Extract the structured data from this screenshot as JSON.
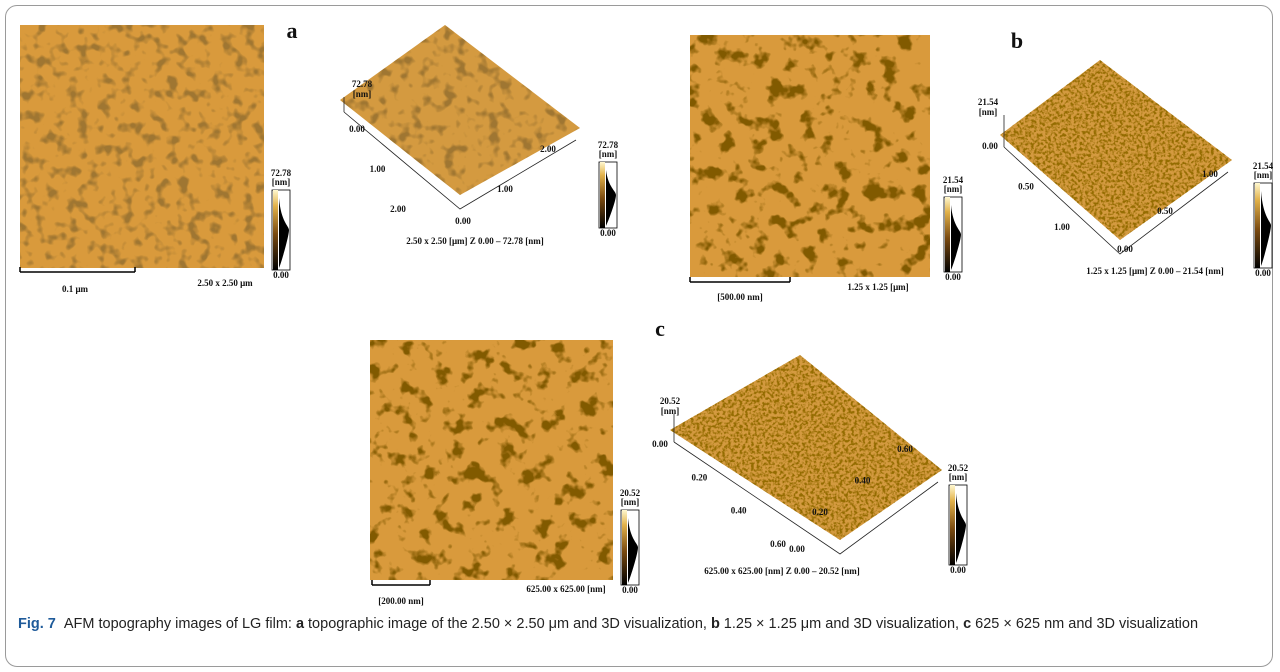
{
  "figure": {
    "panels": [
      {
        "letter": "a",
        "image": {
          "scale_bar": "0.1 μm",
          "size": "2.50 x 2.50 μm",
          "colorbar": {
            "max": "72.78",
            "unit": "[nm]",
            "min": "0.00"
          }
        },
        "view3d": {
          "z_max": "72.78",
          "z_unit": "[nm]",
          "left_ticks": [
            "0.00",
            "1.00",
            "2.00"
          ],
          "origin": "0.00",
          "right_ticks": [
            "1.00",
            "2.00"
          ],
          "caption": "2.50 x 2.50 [μm]   Z 0.00 – 72.78 [nm]",
          "colorbar": {
            "max": "72.78",
            "unit": "[nm]",
            "min": "0.00"
          }
        }
      },
      {
        "letter": "b",
        "image": {
          "scale_bar": "[500.00 nm]",
          "size": "1.25 x 1.25 [μm]",
          "colorbar": {
            "max": "21.54",
            "unit": "[nm]",
            "min": "0.00"
          }
        },
        "view3d": {
          "z_max": "21.54",
          "z_unit": "[nm]",
          "left_ticks": [
            "0.00",
            "0.50",
            "1.00"
          ],
          "origin": "0.00",
          "right_ticks": [
            "0.50",
            "1.00"
          ],
          "caption": "1.25 x 1.25 [μm]   Z  0.00 – 21.54 [nm]",
          "colorbar": {
            "max": "21.54",
            "unit": "[nm]",
            "min": "0.00"
          }
        }
      },
      {
        "letter": "c",
        "image": {
          "scale_bar": "[200.00 nm]",
          "size": "625.00 x 625.00 [nm]",
          "colorbar": {
            "max": "20.52",
            "unit": "[nm]",
            "min": "0.00"
          }
        },
        "view3d": {
          "z_max": "20.52",
          "z_unit": "[nm]",
          "left_ticks": [
            "0.00",
            "0.20",
            "0.40",
            "0.60"
          ],
          "origin": "0.00",
          "right_ticks": [
            "0.20",
            "0.40",
            "0.60"
          ],
          "caption": "625.00 x 625.00 [nm]   Z  0.00 – 20.52 [nm]",
          "colorbar": {
            "max": "20.52",
            "unit": "[nm]",
            "min": "0.00"
          }
        }
      }
    ],
    "caption": {
      "label": "Fig. 7",
      "intro": "AFM topography images of LG film:",
      "items": [
        {
          "letter": "a",
          "text": "topographic image of the 2.50 × 2.50 μm and 3D visualization,"
        },
        {
          "letter": "b",
          "text": "1.25 × 1.25 μm and 3D visualization,"
        },
        {
          "letter": "c",
          "text": "625 × 625 nm and 3D visualization"
        }
      ]
    }
  }
}
